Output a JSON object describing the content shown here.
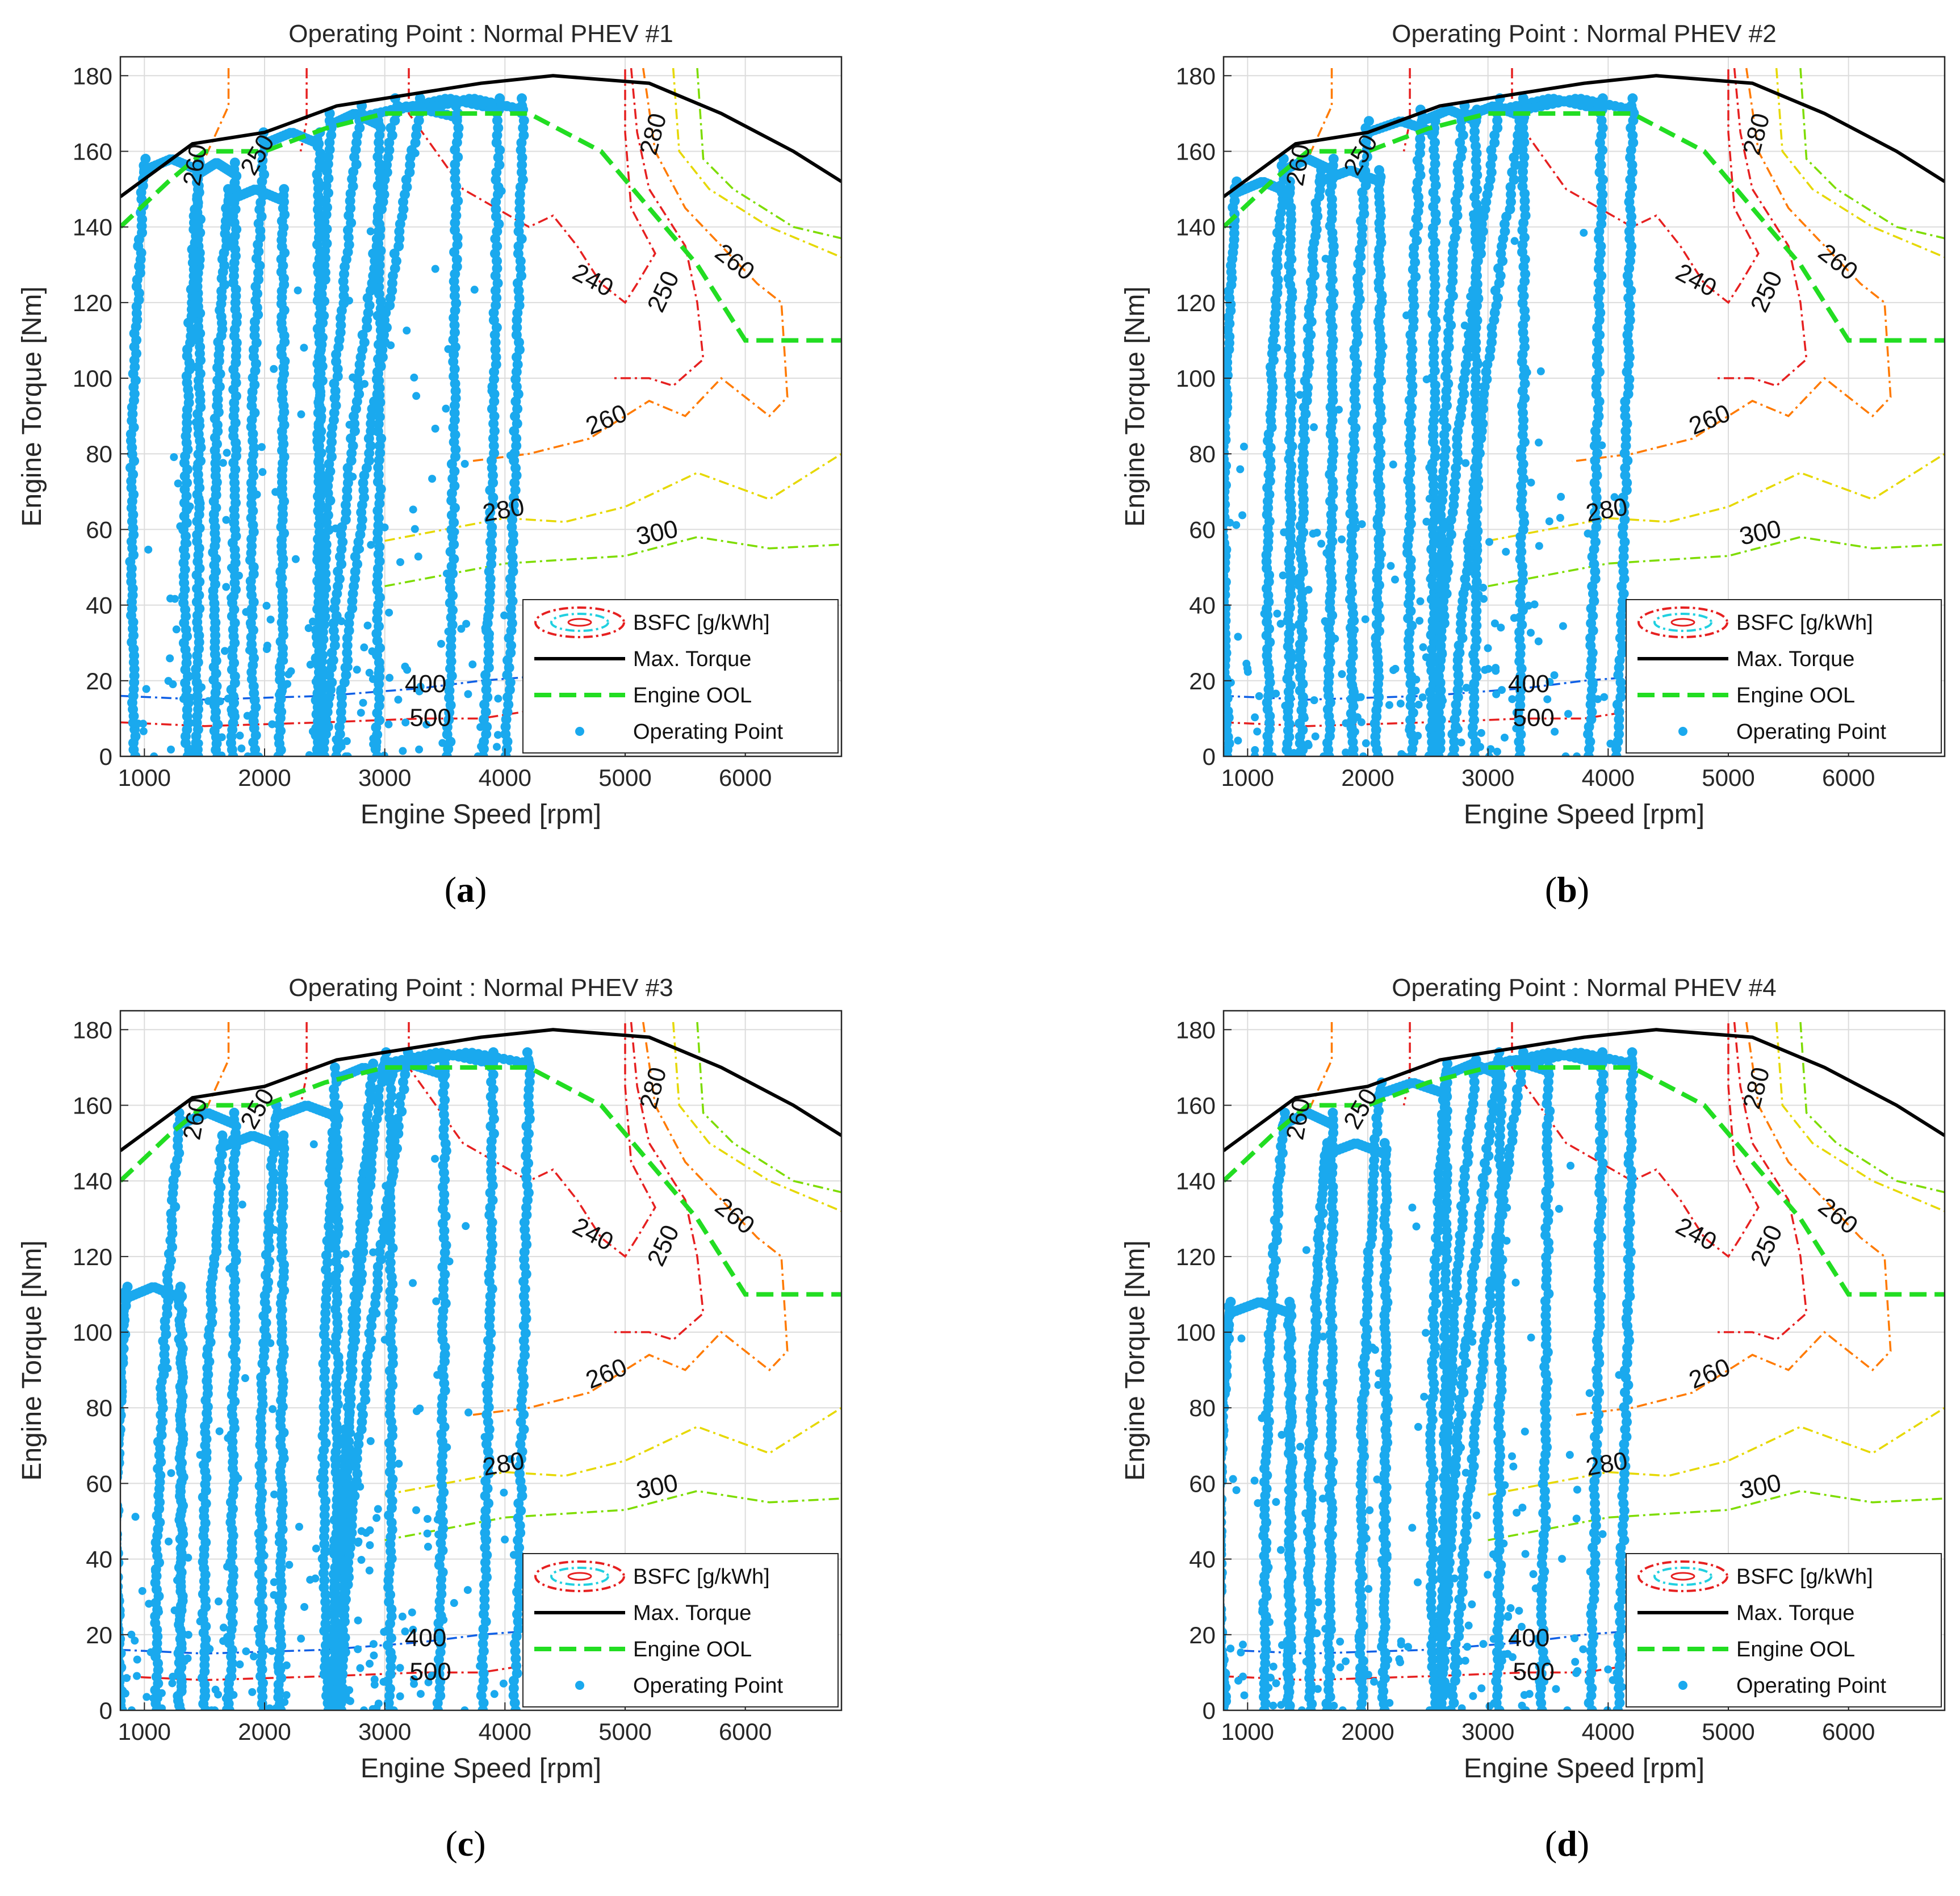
{
  "chart_data": [
    {
      "type": "scatter",
      "panel_label": "a",
      "title": "Operating Point : Normal PHEV #1",
      "xlabel": "Engine Speed [rpm]",
      "ylabel": "Engine Torque [Nm]",
      "xlim": [
        800,
        6800
      ],
      "ylim": [
        0,
        185
      ],
      "xticks": [
        1000,
        2000,
        3000,
        4000,
        5000,
        6000
      ],
      "yticks": [
        0,
        20,
        40,
        60,
        80,
        100,
        120,
        140,
        160,
        180
      ],
      "grid": true,
      "legend_position": "bottom-right",
      "operating_point_loops": [
        {
          "x0": 1000,
          "x1": 1450,
          "top": 158,
          "bottom": 0,
          "lean": -80
        },
        {
          "x0": 1450,
          "x1": 1750,
          "top": 157,
          "bottom": 0,
          "lean": -90
        },
        {
          "x0": 1700,
          "x1": 2150,
          "top": 150,
          "bottom": 0,
          "lean": -100
        },
        {
          "x0": 2000,
          "x1": 2450,
          "top": 165,
          "bottom": 0,
          "lean": -80
        },
        {
          "x0": 2550,
          "x1": 2950,
          "top": 170,
          "bottom": 0,
          "lean": -60
        },
        {
          "x0": 2800,
          "x1": 3600,
          "top": 172,
          "bottom": 0,
          "lean": -350
        },
        {
          "x0": 3100,
          "x1": 3950,
          "top": 174,
          "bottom": 0,
          "lean": -600
        },
        {
          "x0": 3300,
          "x1": 4150,
          "top": 174,
          "bottom": 0,
          "lean": -700
        }
      ]
    },
    {
      "type": "scatter",
      "panel_label": "b",
      "title": "Operating Point : Normal PHEV #2",
      "xlabel": "Engine Speed [rpm]",
      "ylabel": "Engine Torque [Nm]",
      "xlim": [
        800,
        6800
      ],
      "ylim": [
        0,
        185
      ],
      "xticks": [
        1000,
        2000,
        3000,
        4000,
        5000,
        6000
      ],
      "yticks": [
        0,
        20,
        40,
        60,
        80,
        100,
        120,
        140,
        160,
        180
      ],
      "grid": true,
      "legend_position": "bottom-right",
      "operating_point_loops": [
        {
          "x0": 900,
          "x1": 1350,
          "top": 152,
          "bottom": 0,
          "lean": -60
        },
        {
          "x0": 1300,
          "x1": 1700,
          "top": 158,
          "bottom": 0,
          "lean": -120
        },
        {
          "x0": 1600,
          "x1": 2100,
          "top": 155,
          "bottom": 0,
          "lean": -150
        },
        {
          "x0": 2000,
          "x1": 2550,
          "top": 168,
          "bottom": 0,
          "lean": -120
        },
        {
          "x0": 2450,
          "x1": 2900,
          "top": 171,
          "bottom": 0,
          "lean": -80
        },
        {
          "x0": 2800,
          "x1": 3300,
          "top": 172,
          "bottom": 0,
          "lean": -200
        },
        {
          "x0": 3100,
          "x1": 3950,
          "top": 174,
          "bottom": 0,
          "lean": -550
        },
        {
          "x0": 3300,
          "x1": 4200,
          "top": 174,
          "bottom": 0,
          "lean": -600
        }
      ]
    },
    {
      "type": "scatter",
      "panel_label": "c",
      "title": "Operating Point : Normal PHEV #3",
      "xlabel": "Engine Speed [rpm]",
      "ylabel": "Engine Torque [Nm]",
      "xlim": [
        800,
        6800
      ],
      "ylim": [
        0,
        185
      ],
      "xticks": [
        1000,
        2000,
        3000,
        4000,
        5000,
        6000
      ],
      "yticks": [
        0,
        20,
        40,
        60,
        80,
        100,
        120,
        140,
        160,
        180
      ],
      "grid": true,
      "legend_position": "bottom-right",
      "operating_point_loops": [
        {
          "x0": 850,
          "x1": 1300,
          "top": 112,
          "bottom": 0,
          "lean": -40
        },
        {
          "x0": 1300,
          "x1": 1750,
          "top": 158,
          "bottom": 0,
          "lean": -200
        },
        {
          "x0": 1650,
          "x1": 2150,
          "top": 152,
          "bottom": 0,
          "lean": -150
        },
        {
          "x0": 2100,
          "x1": 2600,
          "top": 160,
          "bottom": 0,
          "lean": -120
        },
        {
          "x0": 2600,
          "x1": 3050,
          "top": 170,
          "bottom": 0,
          "lean": -80
        },
        {
          "x0": 2900,
          "x1": 3500,
          "top": 171,
          "bottom": 0,
          "lean": -250
        },
        {
          "x0": 3000,
          "x1": 3900,
          "top": 174,
          "bottom": 0,
          "lean": -450
        },
        {
          "x0": 3200,
          "x1": 4200,
          "top": 174,
          "bottom": 0,
          "lean": -600
        }
      ]
    },
    {
      "type": "scatter",
      "panel_label": "d",
      "title": "Operating Point : Normal PHEV #4",
      "xlabel": "Engine Speed [rpm]",
      "ylabel": "Engine Torque [Nm]",
      "xlim": [
        800,
        6800
      ],
      "ylim": [
        0,
        185
      ],
      "xticks": [
        1000,
        2000,
        3000,
        4000,
        5000,
        6000
      ],
      "yticks": [
        0,
        20,
        40,
        60,
        80,
        100,
        120,
        140,
        160,
        180
      ],
      "grid": true,
      "legend_position": "bottom-right",
      "operating_point_loops": [
        {
          "x0": 850,
          "x1": 1350,
          "top": 108,
          "bottom": 0,
          "lean": -40
        },
        {
          "x0": 1300,
          "x1": 1700,
          "top": 158,
          "bottom": 0,
          "lean": -150
        },
        {
          "x0": 1650,
          "x1": 2150,
          "top": 150,
          "bottom": 0,
          "lean": -120
        },
        {
          "x0": 2100,
          "x1": 2650,
          "top": 166,
          "bottom": 0,
          "lean": -150
        },
        {
          "x0": 2650,
          "x1": 3100,
          "top": 171,
          "bottom": 0,
          "lean": -100
        },
        {
          "x0": 2900,
          "x1": 3500,
          "top": 172,
          "bottom": 0,
          "lean": -300
        },
        {
          "x0": 3100,
          "x1": 3950,
          "top": 174,
          "bottom": 0,
          "lean": -500
        },
        {
          "x0": 3300,
          "x1": 4200,
          "top": 174,
          "bottom": 0,
          "lean": -600
        }
      ]
    }
  ],
  "shared": {
    "legend": [
      {
        "label": "BSFC [g/kWh]",
        "style": "bsfc"
      },
      {
        "label": "Max. Torque",
        "style": "maxtorque"
      },
      {
        "label": "Engine OOL",
        "style": "ool"
      },
      {
        "label": "Operating Point",
        "style": "points"
      }
    ],
    "max_torque": {
      "x": [
        800,
        1400,
        2000,
        2600,
        3200,
        3800,
        4400,
        5200,
        5800,
        6400,
        6800
      ],
      "y": [
        148,
        162,
        165,
        172,
        175,
        178,
        180,
        178,
        170,
        160,
        152
      ]
    },
    "engine_ool": {
      "x": [
        800,
        1200,
        1500,
        2000,
        2500,
        3000,
        3500,
        4200,
        4800,
        5200,
        5600,
        6000,
        6800
      ],
      "y": [
        140,
        152,
        160,
        160,
        166,
        170,
        170,
        170,
        160,
        145,
        130,
        110,
        110
      ]
    },
    "bsfc_contours": [
      {
        "value": "240",
        "color": "#e62020",
        "x": [
          3200,
          3200,
          3650,
          4200,
          4400,
          4600,
          4800,
          5000,
          5100,
          5250,
          5050,
          5000,
          5000
        ],
        "y": [
          182,
          170,
          150,
          140,
          143,
          135,
          125,
          120,
          125,
          133,
          145,
          165,
          182
        ],
        "labels": [
          {
            "text": "240",
            "x": 4700,
            "y": 124,
            "angle": 28
          }
        ]
      },
      {
        "value": "250",
        "color": "#e62020",
        "x": [
          5050,
          5100,
          5200,
          5500,
          5600,
          5650,
          5400,
          5200,
          5050,
          4900
        ],
        "y": [
          182,
          165,
          150,
          135,
          120,
          105,
          98,
          100,
          100,
          100
        ],
        "labels": [
          {
            "text": "250",
            "x": 5380,
            "y": 122,
            "angle": -65
          }
        ]
      },
      {
        "value": "260",
        "color": "#ff7a00",
        "x": [
          5150,
          5250,
          5500,
          6100,
          6300,
          6350,
          6200,
          5800,
          5500,
          5200,
          4700,
          4200,
          3700
        ],
        "y": [
          182,
          160,
          145,
          125,
          120,
          95,
          90,
          100,
          90,
          94,
          84,
          80,
          78
        ],
        "labels": [
          {
            "text": "260",
            "x": 4870,
            "y": 87,
            "angle": -22
          },
          {
            "text": "260",
            "x": 5870,
            "y": 129,
            "angle": 38
          }
        ]
      },
      {
        "value": "280",
        "color": "#e6d800",
        "x": [
          5400,
          5450,
          5700,
          6200,
          6800
        ],
        "y": [
          182,
          160,
          150,
          140,
          132
        ],
        "labels": [
          {
            "text": "280",
            "x": 5300,
            "y": 164,
            "angle": -75
          },
          {
            "text": "280",
            "x": 4000,
            "y": 63,
            "angle": -10
          }
        ]
      },
      {
        "value": "300",
        "color": "#7ddc00",
        "x": [
          5600,
          5650,
          5900,
          6400,
          6800
        ],
        "y": [
          182,
          158,
          150,
          140,
          137
        ],
        "labels": [
          {
            "text": "300",
            "x": 5280,
            "y": 57,
            "angle": -12
          }
        ]
      },
      {
        "value": "280b",
        "color": "#e6d800",
        "x": [
          3000,
          3500,
          4000,
          4500,
          5000,
          5600,
          6200,
          6800
        ],
        "y": [
          57,
          60,
          63,
          62,
          66,
          75,
          68,
          80
        ],
        "labels": []
      },
      {
        "value": "300b",
        "color": "#7ddc00",
        "x": [
          3000,
          3500,
          4000,
          4500,
          5000,
          5600,
          6200,
          6800
        ],
        "y": [
          45,
          48,
          51,
          52,
          53,
          58,
          55,
          56
        ],
        "labels": []
      },
      {
        "value": "400",
        "color": "#1060e6",
        "x": [
          800,
          1500,
          2500,
          3300,
          3800,
          4200
        ],
        "y": [
          16,
          15,
          16,
          18,
          20,
          21
        ],
        "labels": [
          {
            "text": "400",
            "x": 3340,
            "y": 17,
            "angle": 0
          }
        ]
      },
      {
        "value": "500",
        "color": "#e62020",
        "x": [
          800,
          1500,
          2500,
          3300,
          3800,
          4200
        ],
        "y": [
          9,
          8,
          9,
          10,
          10,
          12
        ],
        "labels": [
          {
            "text": "500",
            "x": 3380,
            "y": 8,
            "angle": 0
          }
        ]
      },
      {
        "value": "left-orange",
        "color": "#ff7a00",
        "x": [
          1700,
          1700,
          1600,
          1500
        ],
        "y": [
          182,
          172,
          165,
          158
        ],
        "labels": [
          {
            "text": "260",
            "x": 1490,
            "y": 156,
            "angle": -80
          }
        ]
      },
      {
        "value": "left-red",
        "color": "#e62020",
        "x": [
          2350,
          2350,
          2300
        ],
        "y": [
          182,
          168,
          160
        ],
        "labels": [
          {
            "text": "250",
            "x": 2000,
            "y": 158,
            "angle": -60
          }
        ]
      }
    ],
    "color_points": "#1aa9ee"
  }
}
